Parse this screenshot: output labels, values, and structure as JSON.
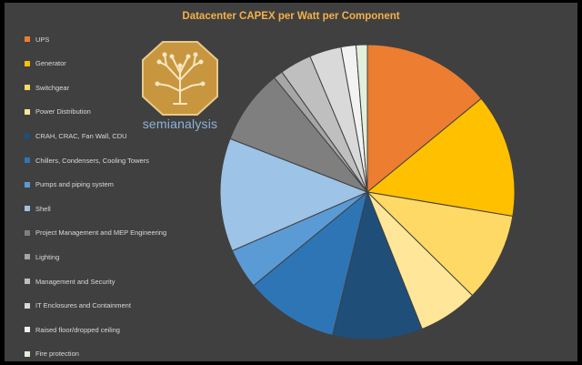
{
  "chart_data": {
    "type": "pie",
    "title": "Datacenter CAPEX per Watt per Component",
    "legend_position": "left",
    "categories": [
      "UPS",
      "Generator",
      "Switchgear",
      "Power Distribution",
      "CRAH, CRAC, Fan Wall, CDU",
      "Chillers, Condensers, Cooling Towers",
      "Pumps and piping system",
      "Shell",
      "Project Management and MEP Engineering",
      "Lighting",
      "Management and Security",
      "IT Enclosures and Containment",
      "Raised floor/dropped ceiling",
      "Fire protection"
    ],
    "values": [
      13.7,
      13.2,
      9.5,
      6.4,
      9.6,
      10.0,
      4.3,
      12.1,
      8.0,
      1.0,
      3.4,
      3.4,
      1.6,
      1.2
    ],
    "colors": [
      "#ED7D31",
      "#FFC000",
      "#FFD966",
      "#FFE699",
      "#1F4E79",
      "#2E75B6",
      "#5B9BD5",
      "#9DC3E6",
      "#7F7F7F",
      "#A6A6A6",
      "#BFBFBF",
      "#D9D9D9",
      "#F2F2F2",
      "#E2EFDA"
    ]
  },
  "logo": {
    "text": "semianalysis"
  }
}
